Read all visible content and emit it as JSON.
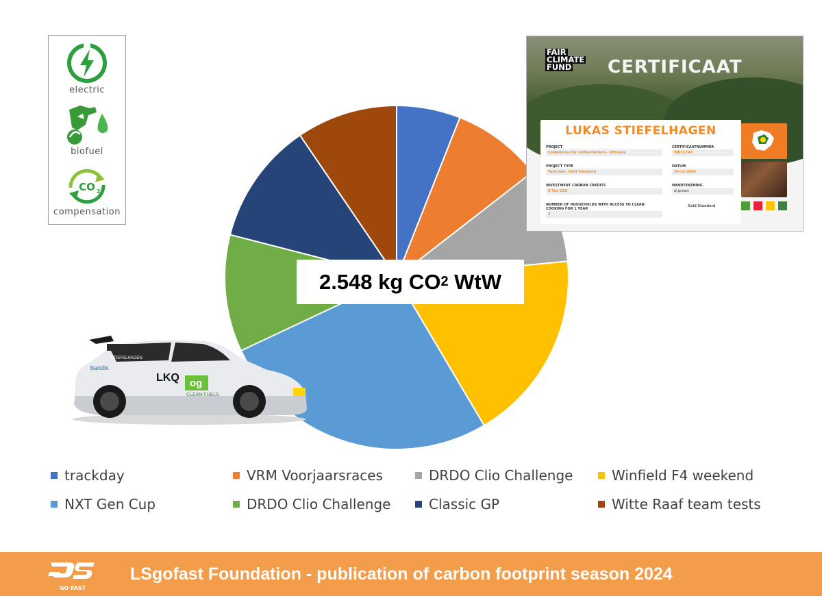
{
  "chart_data": {
    "type": "pie",
    "total_label": "2.548 kg CO",
    "total_label_sub": "2",
    "total_label_suffix": " WtW",
    "series": [
      {
        "name": "trackday",
        "value": 6.0,
        "color": "#4472c4"
      },
      {
        "name": "VRM Voorjaarsraces",
        "value": 8.5,
        "color": "#ed7d31"
      },
      {
        "name": "DRDO Clio Challenge",
        "value": 9.0,
        "color": "#a5a5a5"
      },
      {
        "name": "Winfield F4 weekend",
        "value": 18.0,
        "color": "#ffc000"
      },
      {
        "name": "NXT Gen Cup",
        "value": 26.5,
        "color": "#5b9bd5"
      },
      {
        "name": "DRDO Clio Challenge",
        "value": 11.0,
        "color": "#70ad47"
      },
      {
        "name": "Classic GP",
        "value": 11.5,
        "color": "#264478"
      },
      {
        "name": "Witte Raaf team tests",
        "value": 9.5,
        "color": "#9e480e"
      }
    ]
  },
  "legend": [
    {
      "label": "trackday",
      "color": "#4472c4"
    },
    {
      "label": "VRM Voorjaarsraces",
      "color": "#ed7d31"
    },
    {
      "label": "DRDO Clio Challenge",
      "color": "#a5a5a5"
    },
    {
      "label": "Winfield F4 weekend",
      "color": "#ffc000"
    },
    {
      "label": "NXT Gen Cup",
      "color": "#5b9bd5"
    },
    {
      "label": "DRDO Clio Challenge",
      "color": "#70ad47"
    },
    {
      "label": "Classic GP",
      "color": "#264478"
    },
    {
      "label": "Witte Raaf team tests",
      "color": "#9e480e"
    }
  ],
  "icons": [
    {
      "label": "electric",
      "icon": "lightning-icon"
    },
    {
      "label": "biofuel",
      "icon": "fuel-nozzle-icon"
    },
    {
      "label": "compensation",
      "icon": "co2-recycle-icon"
    }
  ],
  "certificate": {
    "logo_lines": [
      "FAIR",
      "CLIMATE",
      "FUND"
    ],
    "title": "CERTIFICAAT",
    "name": "LUKAS STIEFELHAGEN",
    "fields": [
      {
        "label": "PROJECT",
        "value": "Cookstoves for coffee farmers - Ethiopia"
      },
      {
        "label": "CERTIFICAATNUMMER",
        "value": "WU11743"
      },
      {
        "label": "PROJECT TYPE",
        "value": "Fairtrade, Gold Standard"
      },
      {
        "label": "DATUM",
        "value": "24-11-2024"
      },
      {
        "label": "INVESTMENT CARBON CREDITS",
        "value": "3 Ton CO2"
      },
      {
        "label": "HANDTEKENING",
        "value": "d.green"
      },
      {
        "label": "NUMBER OF HOUSEHOLDS WITH ACCESS TO CLEAN COOKING FOR 1 YEAR",
        "value": "1"
      }
    ],
    "standard_label": "Gold Standard"
  },
  "car": {
    "lines": [
      "LKQ",
      "og",
      "CLEAN FUELS",
      "bandix",
      "STIEFELHAGEN"
    ]
  },
  "footer": {
    "logo_text": "GO FAST",
    "title": "LSgofast Foundation - publication of carbon footprint season 2024",
    "color": "#f39c4a"
  }
}
